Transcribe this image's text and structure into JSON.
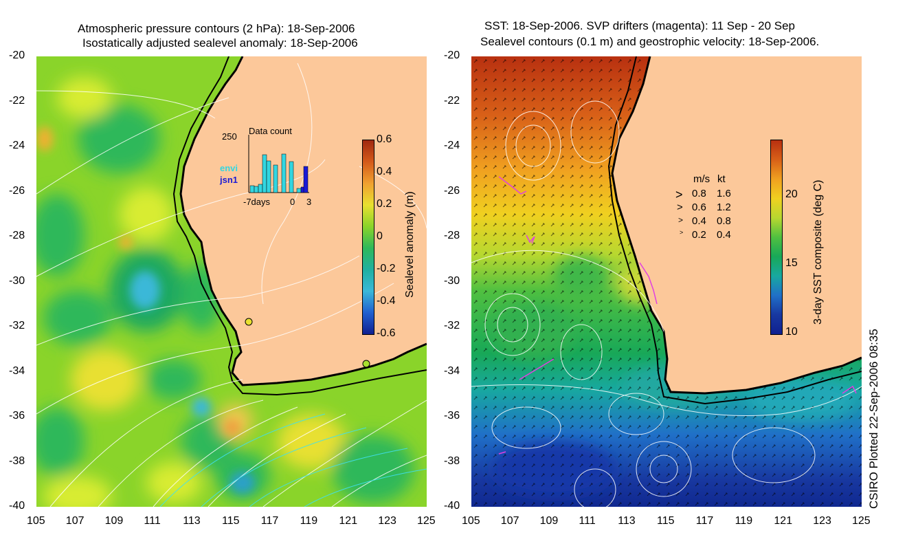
{
  "left_panel": {
    "title_line1": "Atmospheric pressure contours (2 hPa): 18-Sep-2006",
    "title_line2": "Isostatically adjusted sealevel anomaly: 18-Sep-2006",
    "colorbar_label": "Sealevel anomaly (m)",
    "colorbar_ticks": [
      "0.6",
      "0.4",
      "0.2",
      "0",
      "-0.2",
      "-0.4",
      "-0.6"
    ],
    "inset": {
      "title": "Data count",
      "y_max_label": "250",
      "legend_envi": "envi",
      "legend_jsn1": "jsn1",
      "x_labels": [
        "-7days",
        "0",
        "3"
      ],
      "envi_color": "#33d6e0",
      "jsn1_color": "#1a1ad6"
    }
  },
  "right_panel": {
    "title_line1": "SST: 18-Sep-2006. SVP drifters (magenta): 11 Sep - 20 Sep",
    "title_line2": "Sealevel contours (0.1 m) and geostrophic velocity: 18-Sep-2006.",
    "colorbar_label": "3-day SST composite (deg C)",
    "colorbar_ticks": [
      "20",
      "15",
      "10"
    ],
    "velocity_legend": {
      "header_ms": "m/s",
      "header_kt": "kt",
      "rows": [
        {
          "ms": "0.8",
          "kt": "1.6"
        },
        {
          "ms": "0.6",
          "kt": "1.2"
        },
        {
          "ms": "0.4",
          "kt": "0.8"
        },
        {
          "ms": "0.2",
          "kt": "0.4"
        }
      ]
    }
  },
  "axes": {
    "y_ticks": [
      "-20",
      "-22",
      "-24",
      "-26",
      "-28",
      "-30",
      "-32",
      "-34",
      "-36",
      "-38",
      "-40"
    ],
    "x_ticks": [
      "105",
      "107",
      "109",
      "111",
      "113",
      "115",
      "117",
      "119",
      "121",
      "123",
      "125"
    ]
  },
  "credit": "CSIRO Plotted 22-Sep-2006 08:35",
  "colors": {
    "land": "#fcc89a",
    "sla_pos": "#b5301a",
    "sla_neg": "#102090",
    "drifter": "#e040e0"
  }
}
